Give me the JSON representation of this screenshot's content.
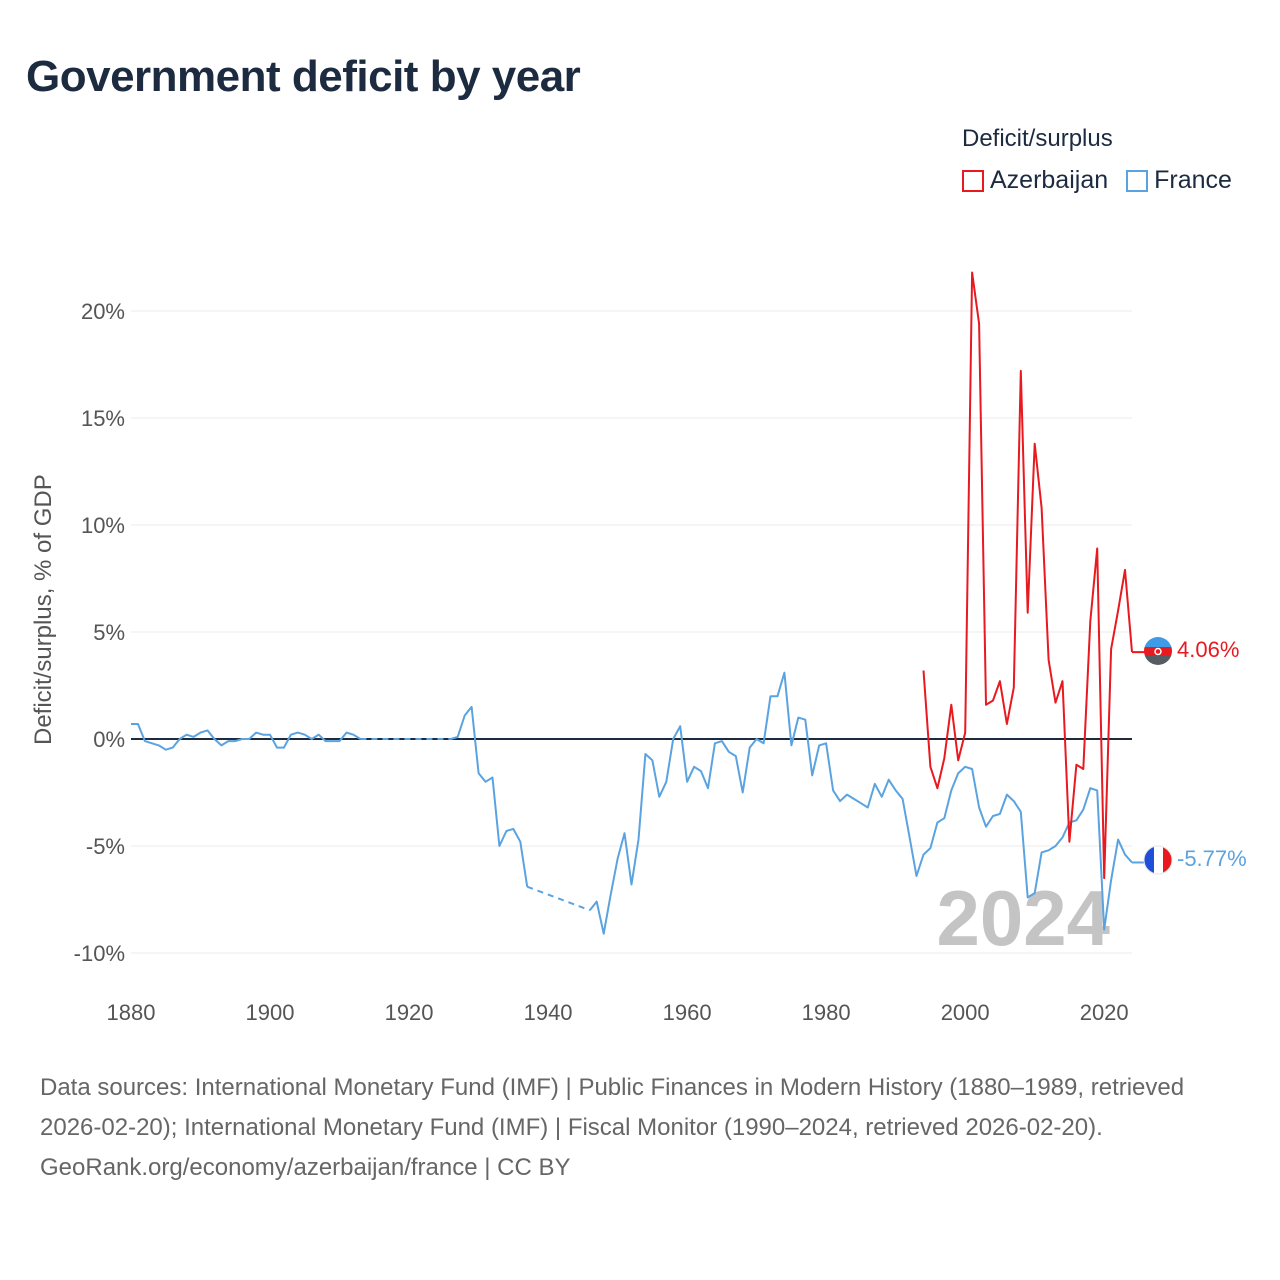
{
  "chart_data": {
    "type": "line",
    "title": "Government deficit by year",
    "ylabel": "Deficit/surplus, % of GDP",
    "xlabel": "",
    "xlim": [
      1880,
      2024
    ],
    "ylim": [
      -10,
      22
    ],
    "y_ticks": [
      {
        "v": 20,
        "label": "20%"
      },
      {
        "v": 15,
        "label": "15%"
      },
      {
        "v": 10,
        "label": "10%"
      },
      {
        "v": 5,
        "label": "5%"
      },
      {
        "v": 0,
        "label": "0%"
      },
      {
        "v": -5,
        "label": "-5%"
      },
      {
        "v": -10,
        "label": "-10%"
      }
    ],
    "x_ticks": [
      {
        "v": 1880,
        "label": "1880"
      },
      {
        "v": 1900,
        "label": "1900"
      },
      {
        "v": 1920,
        "label": "1920"
      },
      {
        "v": 1940,
        "label": "1940"
      },
      {
        "v": 1960,
        "label": "1960"
      },
      {
        "v": 1980,
        "label": "1980"
      },
      {
        "v": 2000,
        "label": "2000"
      },
      {
        "v": 2020,
        "label": "2020"
      }
    ],
    "legend_title": "Deficit/surplus",
    "watermark_year": "2024",
    "series": [
      {
        "name": "Azerbaijan",
        "color": "#e8191f",
        "end_label": "4.06%",
        "segments": [
          [
            [
              1994,
              3.2
            ],
            [
              1995,
              -1.3
            ],
            [
              1996,
              -2.3
            ],
            [
              1997,
              -0.9
            ],
            [
              1998,
              1.6
            ],
            [
              1999,
              -1.0
            ],
            [
              2000,
              0.3
            ],
            [
              2001,
              21.8
            ],
            [
              2002,
              19.4
            ],
            [
              2003,
              1.6
            ],
            [
              2004,
              1.8
            ],
            [
              2005,
              2.7
            ],
            [
              2006,
              0.7
            ],
            [
              2007,
              2.4
            ],
            [
              2008,
              17.2
            ],
            [
              2009,
              5.9
            ],
            [
              2010,
              13.8
            ],
            [
              2011,
              10.8
            ],
            [
              2012,
              3.7
            ],
            [
              2013,
              1.7
            ],
            [
              2014,
              2.7
            ],
            [
              2015,
              -4.8
            ],
            [
              2016,
              -1.2
            ],
            [
              2017,
              -1.4
            ],
            [
              2018,
              5.5
            ],
            [
              2019,
              8.9
            ],
            [
              2020,
              -6.5
            ],
            [
              2021,
              4.2
            ],
            [
              2022,
              6.0
            ],
            [
              2023,
              7.9
            ],
            [
              2024,
              4.06
            ]
          ]
        ]
      },
      {
        "name": "France",
        "color": "#5ba3e0",
        "end_label": "-5.77%",
        "segments": [
          [
            [
              1880,
              0.7
            ],
            [
              1881,
              0.7
            ],
            [
              1882,
              -0.1
            ],
            [
              1883,
              -0.2
            ],
            [
              1884,
              -0.3
            ],
            [
              1885,
              -0.5
            ],
            [
              1886,
              -0.4
            ],
            [
              1887,
              0.0
            ],
            [
              1888,
              0.2
            ],
            [
              1889,
              0.1
            ],
            [
              1890,
              0.3
            ],
            [
              1891,
              0.4
            ],
            [
              1892,
              0.0
            ],
            [
              1893,
              -0.3
            ],
            [
              1894,
              -0.1
            ],
            [
              1895,
              -0.1
            ],
            [
              1896,
              0.0
            ],
            [
              1897,
              0.0
            ],
            [
              1898,
              0.3
            ],
            [
              1899,
              0.2
            ],
            [
              1900,
              0.2
            ],
            [
              1901,
              -0.4
            ],
            [
              1902,
              -0.4
            ],
            [
              1903,
              0.2
            ],
            [
              1904,
              0.3
            ],
            [
              1905,
              0.2
            ],
            [
              1906,
              0.0
            ],
            [
              1907,
              0.2
            ],
            [
              1908,
              -0.1
            ],
            [
              1909,
              -0.1
            ],
            [
              1910,
              -0.1
            ],
            [
              1911,
              0.3
            ],
            [
              1912,
              0.2
            ],
            [
              1913,
              0.0
            ]
          ],
          [
            [
              1926,
              0.0
            ],
            [
              1927,
              0.1
            ],
            [
              1928,
              1.1
            ],
            [
              1929,
              1.5
            ],
            [
              1930,
              -1.6
            ],
            [
              1931,
              -2.0
            ],
            [
              1932,
              -1.8
            ],
            [
              1933,
              -5.0
            ],
            [
              1934,
              -4.3
            ],
            [
              1935,
              -4.2
            ],
            [
              1936,
              -4.8
            ],
            [
              1937,
              -6.9
            ]
          ],
          [
            [
              1946,
              -8.0
            ],
            [
              1947,
              -7.6
            ],
            [
              1948,
              -9.1
            ],
            [
              1949,
              -7.3
            ],
            [
              1950,
              -5.6
            ],
            [
              1951,
              -4.4
            ],
            [
              1952,
              -6.8
            ],
            [
              1953,
              -4.7
            ],
            [
              1954,
              -0.7
            ],
            [
              1955,
              -1.0
            ],
            [
              1956,
              -2.7
            ],
            [
              1957,
              -2.0
            ],
            [
              1958,
              0.0
            ],
            [
              1959,
              0.6
            ],
            [
              1960,
              -2.0
            ],
            [
              1961,
              -1.3
            ],
            [
              1962,
              -1.5
            ],
            [
              1963,
              -2.3
            ],
            [
              1964,
              -0.2
            ],
            [
              1965,
              -0.1
            ],
            [
              1966,
              -0.6
            ],
            [
              1967,
              -0.8
            ],
            [
              1968,
              -2.5
            ],
            [
              1969,
              -0.4
            ],
            [
              1970,
              0.0
            ],
            [
              1971,
              -0.2
            ],
            [
              1972,
              2.0
            ],
            [
              1973,
              2.0
            ],
            [
              1974,
              3.1
            ],
            [
              1975,
              -0.3
            ],
            [
              1976,
              1.0
            ],
            [
              1977,
              0.9
            ],
            [
              1978,
              -1.7
            ],
            [
              1979,
              -0.3
            ],
            [
              1980,
              -0.2
            ],
            [
              1981,
              -2.4
            ],
            [
              1982,
              -2.9
            ],
            [
              1983,
              -2.6
            ],
            [
              1984,
              -2.8
            ],
            [
              1985,
              -3.0
            ],
            [
              1986,
              -3.2
            ],
            [
              1987,
              -2.1
            ],
            [
              1988,
              -2.7
            ],
            [
              1989,
              -1.9
            ],
            [
              1990,
              -2.4
            ],
            [
              1991,
              -2.8
            ],
            [
              1992,
              -4.6
            ],
            [
              1993,
              -6.4
            ],
            [
              1994,
              -5.4
            ],
            [
              1995,
              -5.1
            ],
            [
              1996,
              -3.9
            ],
            [
              1997,
              -3.7
            ],
            [
              1998,
              -2.4
            ],
            [
              1999,
              -1.6
            ],
            [
              2000,
              -1.3
            ],
            [
              2001,
              -1.4
            ],
            [
              2002,
              -3.2
            ],
            [
              2003,
              -4.1
            ],
            [
              2004,
              -3.6
            ],
            [
              2005,
              -3.5
            ],
            [
              2006,
              -2.6
            ],
            [
              2007,
              -2.9
            ],
            [
              2008,
              -3.4
            ],
            [
              2009,
              -7.4
            ],
            [
              2010,
              -7.2
            ],
            [
              2011,
              -5.3
            ],
            [
              2012,
              -5.2
            ],
            [
              2013,
              -5.0
            ],
            [
              2014,
              -4.6
            ],
            [
              2015,
              -3.9
            ],
            [
              2016,
              -3.8
            ],
            [
              2017,
              -3.3
            ],
            [
              2018,
              -2.3
            ],
            [
              2019,
              -2.4
            ],
            [
              2020,
              -8.9
            ],
            [
              2021,
              -6.6
            ],
            [
              2022,
              -4.7
            ],
            [
              2023,
              -5.4
            ],
            [
              2024,
              -5.77
            ]
          ]
        ],
        "gaps": [
          [
            [
              1913,
              0.0
            ],
            [
              1926,
              0.0
            ]
          ],
          [
            [
              1937,
              -6.9
            ],
            [
              1946,
              -8.0
            ]
          ]
        ]
      }
    ]
  },
  "footer": {
    "sources": "Data sources: International Monetary Fund (IMF) | Public Finances in Modern History (1880–1989, retrieved 2026-02-20); International Monetary Fund (IMF) | Fiscal Monitor (1990–2024, retrieved 2026-02-20).",
    "credit": "GeoRank.org/economy/azerbaijan/france | CC BY"
  }
}
